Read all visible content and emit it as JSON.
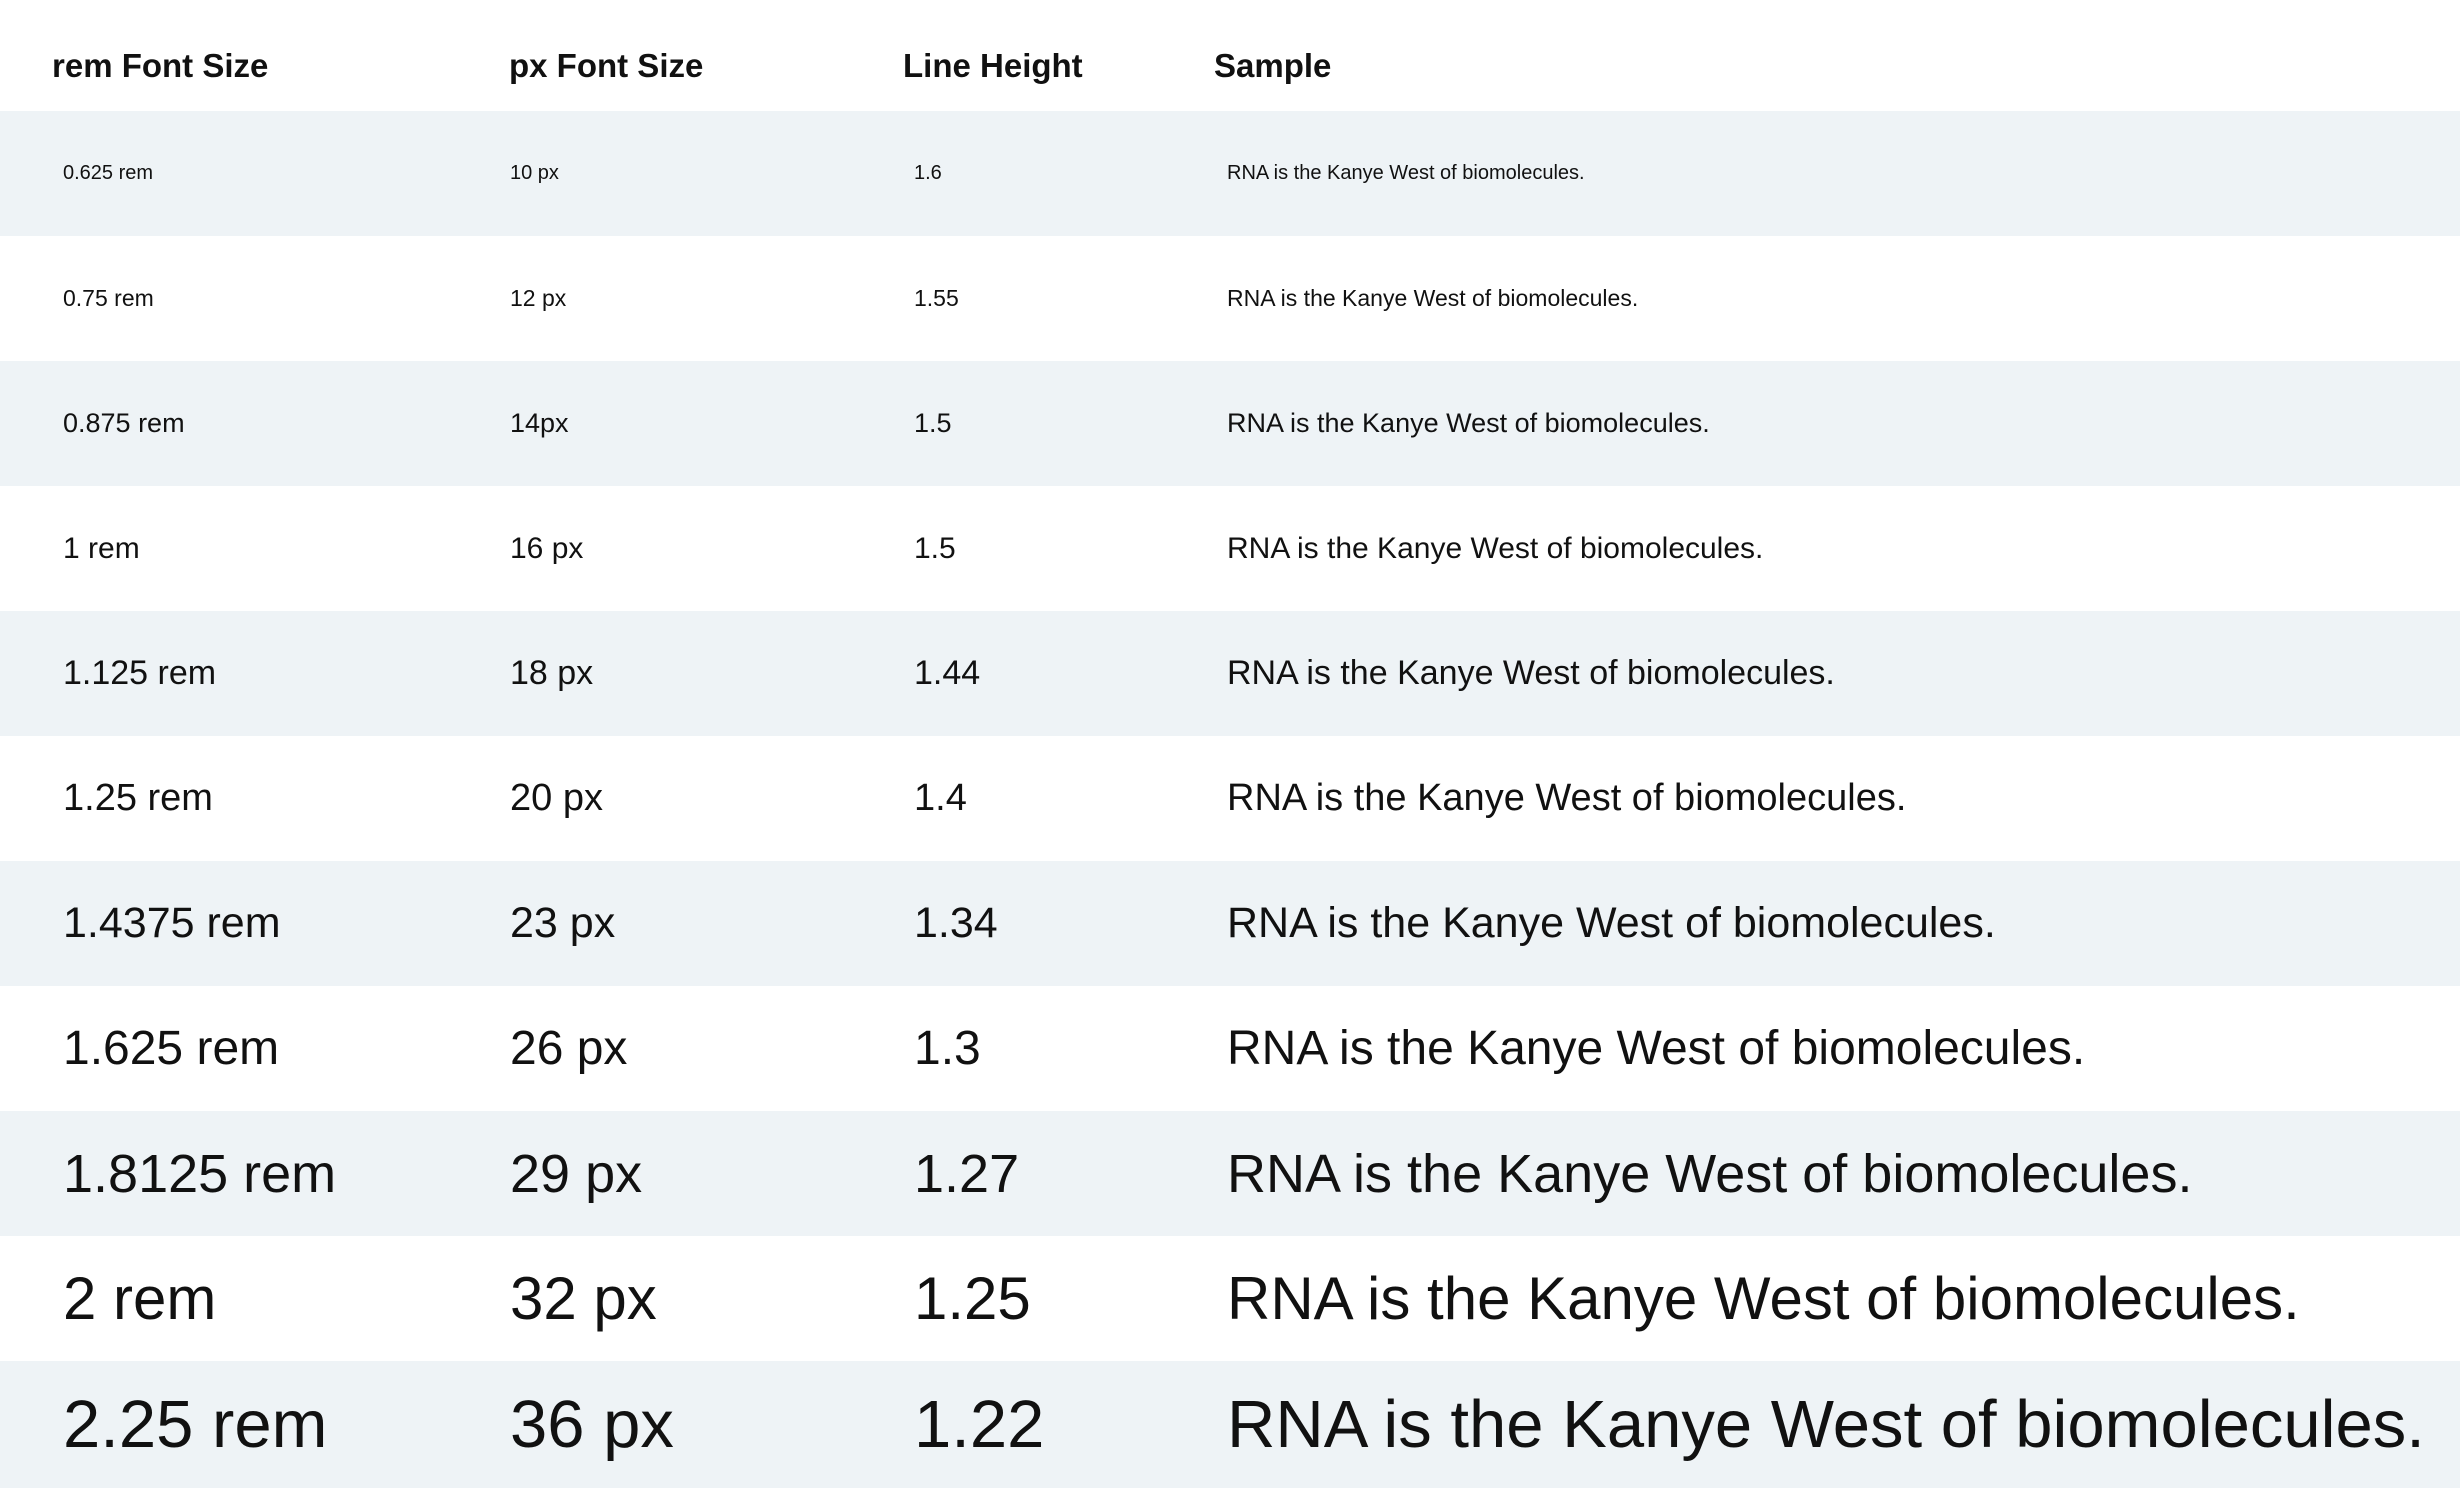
{
  "headers": {
    "rem": "rem Font Size",
    "px": "px Font Size",
    "line_height": "Line Height",
    "sample": "Sample"
  },
  "rows": [
    {
      "rem": "0.625 rem",
      "px": "10 px",
      "lh": "1.6",
      "sample": "RNA is the Kanye West of biomolecules."
    },
    {
      "rem": "0.75 rem",
      "px": "12 px",
      "lh": "1.55",
      "sample": "RNA is the Kanye West of biomolecules."
    },
    {
      "rem": "0.875 rem",
      "px": "14px",
      "lh": "1.5",
      "sample": "RNA is the Kanye West of biomolecules."
    },
    {
      "rem": "1 rem",
      "px": "16 px",
      "lh": "1.5",
      "sample": "RNA is the Kanye West of biomolecules."
    },
    {
      "rem": "1.125 rem",
      "px": "18 px",
      "lh": "1.44",
      "sample": "RNA is the Kanye West of biomolecules."
    },
    {
      "rem": "1.25 rem",
      "px": "20 px",
      "lh": "1.4",
      "sample": "RNA is the Kanye West of biomolecules."
    },
    {
      "rem": "1.4375 rem",
      "px": "23 px",
      "lh": "1.34",
      "sample": "RNA is the Kanye West of biomolecules."
    },
    {
      "rem": "1.625 rem",
      "px": "26 px",
      "lh": "1.3",
      "sample": "RNA is the Kanye West of biomolecules."
    },
    {
      "rem": "1.8125 rem",
      "px": "29 px",
      "lh": "1.27",
      "sample": "RNA is the Kanye West of biomolecules."
    },
    {
      "rem": "2 rem",
      "px": "32 px",
      "lh": "1.25",
      "sample": "RNA is the Kanye West of biomolecules."
    },
    {
      "rem": "2.25 rem",
      "px": "36 px",
      "lh": "1.22",
      "sample": "RNA is the Kanye West of biomolecules."
    }
  ]
}
